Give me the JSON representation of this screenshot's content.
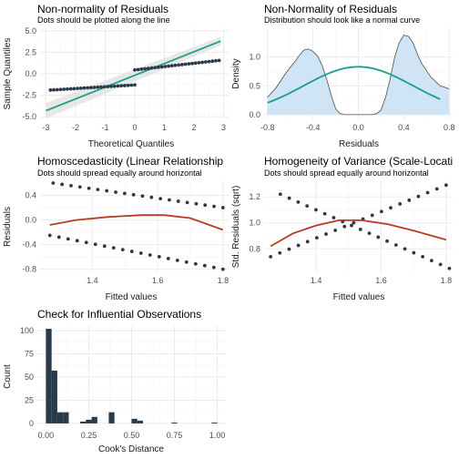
{
  "colors": {
    "points": "#2b3a4a",
    "teal": "#1a9e8a",
    "red": "#b83a24",
    "density_fill": "#cfe5f5",
    "density_line": "#4d4d4d",
    "ci_band": "#d9d9d9",
    "bar": "#2b3a4a",
    "grid": "#ebebeb"
  },
  "chart_data": [
    {
      "id": "qq",
      "type": "scatter",
      "title": "Non-normality of Residuals",
      "subtitle": "Dots should be plotted along the line",
      "xlabel": "Theoretical Quantiles",
      "ylabel": "Sample Quantiles",
      "xlim": [
        -3.2,
        3.2
      ],
      "ylim": [
        -5.3,
        5.3
      ],
      "xticks": [
        -3,
        -2,
        -1,
        0,
        1,
        2,
        3
      ],
      "yticks": [
        -5.0,
        -2.5,
        0.0,
        2.5,
        5.0
      ],
      "ytick_labels": [
        "-5.0",
        "-2.5",
        "0.0",
        "2.5",
        "5.0"
      ],
      "grid": true,
      "reference_line": {
        "from": [
          -3,
          -4.3
        ],
        "to": [
          2.9,
          3.8
        ]
      },
      "points_lower": {
        "x_from": -2.85,
        "x_to": 0.0,
        "n": 26,
        "y_from": -1.9,
        "y_to": -1.3
      },
      "points_upper": {
        "x_from": 0.0,
        "x_to": 2.85,
        "n": 26,
        "y_from": 0.45,
        "y_to": 1.55
      }
    },
    {
      "id": "density",
      "type": "area",
      "title": "Non-Normality of Residuals",
      "subtitle": "Distribution should look like a normal curve",
      "xlabel": "Residuals",
      "ylabel": "Density",
      "xlim": [
        -0.83,
        0.83
      ],
      "ylim": [
        -0.08,
        1.5
      ],
      "xticks": [
        -0.8,
        -0.4,
        0.0,
        0.4,
        0.8
      ],
      "xtick_labels": [
        "-0.8",
        "-0.4",
        "0.0",
        "0.4",
        "0.8"
      ],
      "yticks": [
        0.0,
        0.5,
        1.0
      ],
      "ytick_labels": [
        "0.0",
        "0.5",
        "1.0"
      ],
      "grid": true,
      "density_x": [
        -0.8,
        -0.72,
        -0.64,
        -0.56,
        -0.52,
        -0.48,
        -0.44,
        -0.4,
        -0.36,
        -0.32,
        -0.28,
        -0.24,
        -0.2,
        -0.16,
        -0.12,
        -0.08,
        -0.04,
        0.0,
        0.04,
        0.08,
        0.12,
        0.16,
        0.2,
        0.24,
        0.28,
        0.32,
        0.36,
        0.4,
        0.44,
        0.48,
        0.52,
        0.56,
        0.64,
        0.72,
        0.8
      ],
      "density_y": [
        0.3,
        0.48,
        0.72,
        0.92,
        1.03,
        1.12,
        1.14,
        1.1,
        1.02,
        0.86,
        0.62,
        0.34,
        0.1,
        0.02,
        0.0,
        0.0,
        0.0,
        0.0,
        0.0,
        0.0,
        0.0,
        0.02,
        0.08,
        0.3,
        0.62,
        1.0,
        1.25,
        1.38,
        1.36,
        1.25,
        1.05,
        0.88,
        0.65,
        0.5,
        0.45
      ],
      "normal_curve": {
        "mean": 0.0,
        "sd": 0.48,
        "range": [
          -0.8,
          0.72
        ]
      }
    },
    {
      "id": "homoscedasticity",
      "type": "scatter",
      "title": "Homoscedasticity (Linear Relationship",
      "subtitle": "Dots should spread equally around horizontal",
      "xlabel": "Fitted values",
      "ylabel": "Residuals",
      "xlim": [
        1.24,
        1.82
      ],
      "ylim": [
        -0.85,
        0.63
      ],
      "xticks": [
        1.4,
        1.6,
        1.8
      ],
      "xtick_labels": [
        "1.4",
        "1.6",
        "1.8"
      ],
      "yticks": [
        -0.8,
        -0.4,
        0.0,
        0.4
      ],
      "ytick_labels": [
        "-0.8",
        "-0.4",
        "0.0",
        "0.4"
      ],
      "grid": true,
      "points_upper": {
        "x_from": 1.28,
        "x_to": 1.8,
        "n": 20,
        "y_from": 0.6,
        "y_to": 0.2
      },
      "points_lower": {
        "x_from": 1.27,
        "x_to": 1.8,
        "n": 20,
        "y_from": -0.25,
        "y_to": -0.8
      },
      "smooth_x": [
        1.27,
        1.35,
        1.45,
        1.55,
        1.62,
        1.7,
        1.8
      ],
      "smooth_y": [
        -0.08,
        0.0,
        0.05,
        0.08,
        0.08,
        0.03,
        -0.16
      ]
    },
    {
      "id": "scale_location",
      "type": "scatter",
      "title": "Homogeneity of Variance (Scale-Locati",
      "subtitle": "Dots should spread equally around horizontal",
      "xlabel": "Fitted values",
      "ylabel": "Std. Residuals (sqrt)",
      "xlim": [
        1.24,
        1.82
      ],
      "ylim": [
        0.62,
        1.32
      ],
      "xticks": [
        1.4,
        1.6,
        1.8
      ],
      "xtick_labels": [
        "1.4",
        "1.6",
        "1.8"
      ],
      "yticks": [
        0.8,
        1.0,
        1.2
      ],
      "ytick_labels": [
        "0.8",
        "1.0",
        "1.2"
      ],
      "grid": true,
      "points_falling": {
        "x_from": 1.29,
        "x_to": 1.81,
        "n": 20,
        "y_from": 1.22,
        "y_to": 0.65
      },
      "points_rising": {
        "x_from": 1.26,
        "x_to": 1.8,
        "n": 20,
        "y_from": 0.74,
        "y_to": 1.29
      },
      "smooth_x": [
        1.26,
        1.33,
        1.4,
        1.47,
        1.54,
        1.62,
        1.7,
        1.8
      ],
      "smooth_y": [
        0.82,
        0.92,
        0.98,
        1.02,
        1.02,
        0.99,
        0.94,
        0.87
      ]
    },
    {
      "id": "cooks",
      "type": "bar",
      "title": "Check for Influential Observations",
      "subtitle": "",
      "xlabel": "Cook's Distance",
      "ylabel": "Count",
      "xlim": [
        -0.05,
        1.05
      ],
      "ylim": [
        -4,
        105
      ],
      "xticks": [
        0.0,
        0.25,
        0.5,
        0.75,
        1.0
      ],
      "xtick_labels": [
        "0.00",
        "0.25",
        "0.50",
        "0.75",
        "1.00"
      ],
      "yticks": [
        0,
        25,
        50,
        75,
        100
      ],
      "ytick_labels": [
        "0",
        "25",
        "50",
        "75",
        "100"
      ],
      "grid": true,
      "bin_width": 0.0333,
      "bin_starts": [
        0.0,
        0.0333,
        0.0667,
        0.1,
        0.2,
        0.2333,
        0.2667,
        0.3667,
        0.5,
        0.5333,
        0.7333,
        0.9667
      ],
      "counts": [
        102,
        57,
        12,
        12,
        2,
        4,
        7,
        12,
        5,
        3,
        1,
        1
      ]
    }
  ]
}
